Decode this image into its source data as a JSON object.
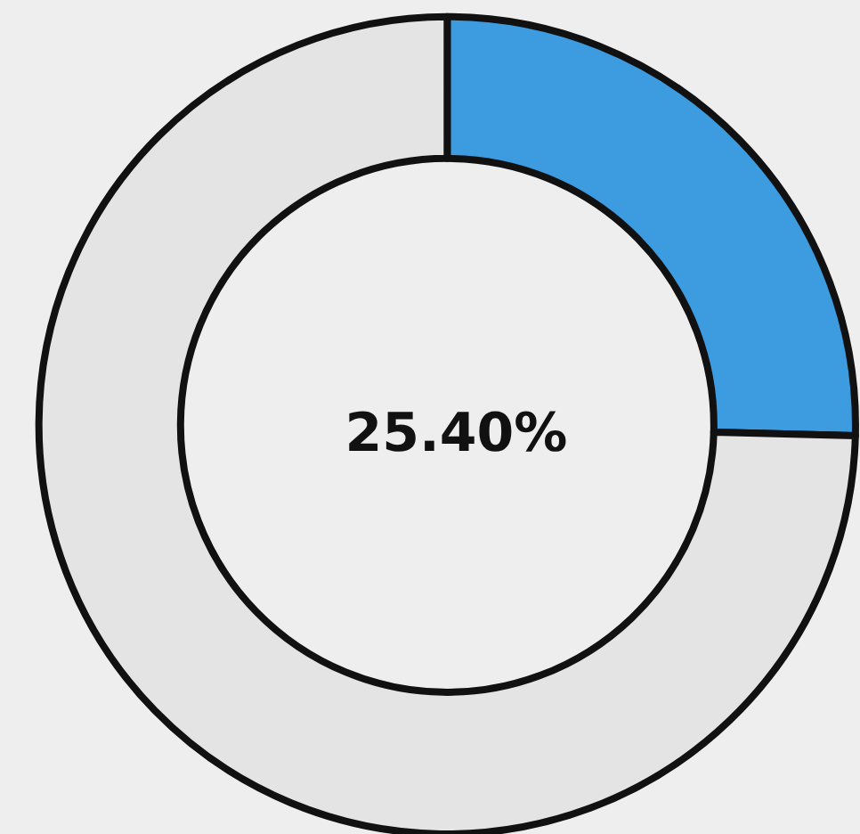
{
  "chart_data": {
    "type": "donut",
    "categories": [
      null,
      null
    ],
    "values": [
      25.4,
      74.6
    ],
    "colors": [
      "#3d9be0",
      "#e4e4e4"
    ],
    "annotations": [
      "25.40%"
    ]
  }
}
